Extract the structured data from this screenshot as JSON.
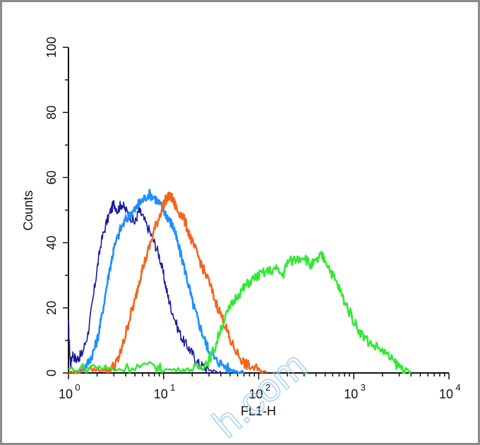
{
  "chart_data": {
    "type": "line",
    "title": "",
    "xlabel": "FL1-H",
    "ylabel": "Counts",
    "xscale": "log",
    "xlim": [
      1,
      10000
    ],
    "ylim": [
      0,
      100
    ],
    "x_ticks": [
      {
        "base": "10",
        "exp": "0",
        "value": 1
      },
      {
        "base": "10",
        "exp": "1",
        "value": 10
      },
      {
        "base": "10",
        "exp": "2",
        "value": 100
      },
      {
        "base": "10",
        "exp": "3",
        "value": 1000
      },
      {
        "base": "10",
        "exp": "4",
        "value": 10000
      }
    ],
    "y_ticks": [
      "0",
      "20",
      "40",
      "60",
      "80",
      "100"
    ],
    "grid": false,
    "legend": "none",
    "series": [
      {
        "color": "#1a1aa0",
        "x": [
          1,
          1.05,
          1.1,
          1.2,
          1.3,
          1.4,
          1.6,
          1.8,
          2.0,
          2.2,
          2.5,
          2.8,
          3.0,
          3.3,
          3.6,
          4.0,
          4.5,
          5.0,
          5.5,
          6.0,
          7.0,
          8.0,
          9.0,
          10,
          11,
          12,
          14,
          16,
          18,
          20,
          23,
          26,
          30,
          35,
          40
        ],
        "y": [
          15,
          2,
          6,
          4,
          5,
          6,
          12,
          22,
          32,
          40,
          46,
          50,
          52,
          50,
          52,
          50,
          48,
          46,
          50,
          48,
          44,
          40,
          36,
          30,
          24,
          20,
          14,
          10,
          8,
          6,
          3,
          2,
          1,
          0.5,
          0
        ]
      },
      {
        "color": "#1e90ff",
        "x": [
          1.2,
          1.4,
          1.6,
          1.8,
          2.0,
          2.2,
          2.5,
          2.8,
          3.0,
          3.5,
          4.0,
          4.5,
          5.0,
          5.5,
          6.0,
          7.0,
          8.0,
          9.0,
          10,
          11,
          12,
          13,
          14,
          16,
          18,
          20,
          22,
          25,
          28,
          30,
          35,
          40,
          50,
          60,
          70
        ],
        "y": [
          0,
          1,
          3,
          6,
          10,
          16,
          26,
          34,
          38,
          44,
          47,
          49,
          50,
          52,
          53,
          55,
          54,
          52,
          50,
          48,
          46,
          44,
          40,
          34,
          28,
          22,
          18,
          13,
          9,
          7,
          4,
          3,
          1,
          0.5,
          0
        ]
      },
      {
        "color": "#f2661e",
        "x": [
          1,
          1.5,
          2.0,
          2.5,
          3.0,
          3.3,
          3.6,
          4.0,
          4.5,
          5.0,
          5.5,
          6.0,
          7.0,
          8.0,
          9.0,
          10,
          11,
          12,
          13,
          14,
          16,
          18,
          20,
          23,
          26,
          30,
          35,
          40,
          45,
          50,
          60,
          70,
          80,
          100,
          120
        ],
        "y": [
          0,
          1,
          1,
          1,
          2,
          4,
          7,
          12,
          18,
          22,
          28,
          32,
          38,
          44,
          48,
          52,
          54,
          54,
          52,
          50,
          48,
          44,
          40,
          36,
          32,
          28,
          22,
          18,
          14,
          10,
          6,
          3,
          2,
          1,
          0
        ]
      },
      {
        "color": "#33e833",
        "x": [
          1,
          2,
          3,
          5,
          8,
          10,
          15,
          20,
          25,
          30,
          35,
          40,
          50,
          60,
          70,
          80,
          100,
          120,
          150,
          180,
          200,
          250,
          300,
          350,
          400,
          450,
          500,
          600,
          700,
          800,
          1000,
          1200,
          1500,
          2000,
          2500,
          3000,
          3500,
          4000
        ],
        "y": [
          1,
          2,
          1,
          2,
          2,
          1,
          1,
          1,
          2,
          4,
          8,
          14,
          20,
          24,
          26,
          28,
          30,
          31,
          32,
          30,
          34,
          35,
          36,
          33,
          34,
          36,
          35,
          30,
          26,
          22,
          16,
          12,
          9,
          7,
          4,
          2,
          1,
          0
        ]
      }
    ]
  },
  "watermark": "h.com"
}
